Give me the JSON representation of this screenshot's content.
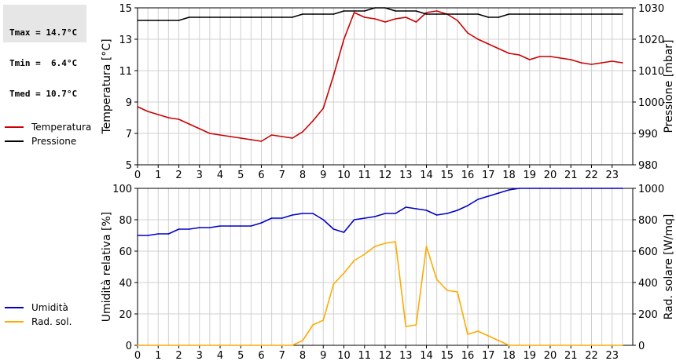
{
  "stats": {
    "tmax": "Tmax = 14.7°C",
    "tmin": "Tmin =  6.4°C",
    "tmed": "Tmed = 10.7°C"
  },
  "colors": {
    "temperature": "#cc0000",
    "pressure": "#000000",
    "humidity": "#0000cc",
    "radiation": "#ffaa00",
    "grid": "#d0d0d0"
  },
  "chart_data": [
    {
      "type": "line",
      "ylabel": "Temperatura [°C]",
      "ylabel_right": "Pressione [mbar]",
      "xlim": [
        0,
        24
      ],
      "xticks": [
        0,
        1,
        2,
        3,
        4,
        5,
        6,
        7,
        8,
        9,
        10,
        11,
        12,
        13,
        14,
        15,
        16,
        17,
        18,
        19,
        20,
        21,
        22,
        23
      ],
      "ylim": [
        5,
        15
      ],
      "yticks": [
        5,
        7,
        9,
        11,
        13,
        15
      ],
      "ylim_right": [
        980,
        1030
      ],
      "yticks_right": [
        980,
        990,
        1000,
        1010,
        1020,
        1030
      ],
      "grid": true,
      "legend_position": "left",
      "series": [
        {
          "name": "Temperatura",
          "axis": "left",
          "color": "#cc0000",
          "x": [
            0,
            0.5,
            1,
            1.5,
            2,
            2.5,
            3,
            3.5,
            4,
            4.5,
            5,
            5.5,
            6,
            6.5,
            7,
            7.5,
            8,
            8.5,
            9,
            9.5,
            10,
            10.5,
            11,
            11.5,
            12,
            12.5,
            13,
            13.5,
            14,
            14.5,
            15,
            15.5,
            16,
            16.5,
            17,
            17.5,
            18,
            18.5,
            19,
            19.5,
            20,
            20.5,
            21,
            21.5,
            22,
            22.5,
            23,
            23.5
          ],
          "y": [
            8.7,
            8.4,
            8.2,
            8.0,
            7.9,
            7.6,
            7.3,
            7.0,
            6.9,
            6.8,
            6.7,
            6.6,
            6.5,
            6.9,
            6.8,
            6.7,
            7.1,
            7.8,
            8.6,
            10.7,
            13.0,
            14.7,
            14.4,
            14.3,
            14.1,
            14.3,
            14.4,
            14.1,
            14.7,
            14.8,
            14.6,
            14.2,
            13.4,
            13.0,
            12.7,
            12.4,
            12.1,
            12.0,
            11.7,
            11.9,
            11.9,
            11.8,
            11.7,
            11.5,
            11.4,
            11.5,
            11.6,
            11.5
          ]
        },
        {
          "name": "Pressione",
          "axis": "right",
          "color": "#000000",
          "x": [
            0,
            0.5,
            1,
            1.5,
            2,
            2.5,
            3,
            3.5,
            4,
            4.5,
            5,
            5.5,
            6,
            6.5,
            7,
            7.5,
            8,
            8.5,
            9,
            9.5,
            10,
            10.5,
            11,
            11.5,
            12,
            12.5,
            13,
            13.5,
            14,
            14.5,
            15,
            15.5,
            16,
            16.5,
            17,
            17.5,
            18,
            18.5,
            19,
            19.5,
            20,
            20.5,
            21,
            21.5,
            22,
            22.5,
            23,
            23.5
          ],
          "y": [
            1026,
            1026,
            1026,
            1026,
            1026,
            1027,
            1027,
            1027,
            1027,
            1027,
            1027,
            1027,
            1027,
            1027,
            1027,
            1027,
            1028,
            1028,
            1028,
            1028,
            1029,
            1029,
            1029,
            1030,
            1030,
            1029,
            1029,
            1029,
            1028,
            1028,
            1028,
            1028,
            1028,
            1028,
            1027,
            1027,
            1028,
            1028,
            1028,
            1028,
            1028,
            1028,
            1028,
            1028,
            1028,
            1028,
            1028,
            1028
          ]
        }
      ]
    },
    {
      "type": "line",
      "ylabel": "Umidità relativa [%]",
      "ylabel_right": "Rad. solare [W/mq]",
      "xlim": [
        0,
        24
      ],
      "xticks": [
        0,
        1,
        2,
        3,
        4,
        5,
        6,
        7,
        8,
        9,
        10,
        11,
        12,
        13,
        14,
        15,
        16,
        17,
        18,
        19,
        20,
        21,
        22,
        23
      ],
      "ylim": [
        0,
        100
      ],
      "yticks": [
        0,
        20,
        40,
        60,
        80,
        100
      ],
      "ylim_right": [
        0,
        1000
      ],
      "yticks_right": [
        0,
        200,
        400,
        600,
        800,
        1000
      ],
      "grid": true,
      "legend_position": "left",
      "series": [
        {
          "name": "Umidità",
          "axis": "left",
          "color": "#0000cc",
          "x": [
            0,
            0.5,
            1,
            1.5,
            2,
            2.5,
            3,
            3.5,
            4,
            4.5,
            5,
            5.5,
            6,
            6.5,
            7,
            7.5,
            8,
            8.5,
            9,
            9.5,
            10,
            10.5,
            11,
            11.5,
            12,
            12.5,
            13,
            13.5,
            14,
            14.5,
            15,
            15.5,
            16,
            16.5,
            17,
            17.5,
            18,
            18.5,
            19,
            19.5,
            20,
            20.5,
            21,
            21.5,
            22,
            22.5,
            23,
            23.5
          ],
          "y": [
            70,
            70,
            71,
            71,
            74,
            74,
            75,
            75,
            76,
            76,
            76,
            76,
            78,
            81,
            81,
            83,
            84,
            84,
            80,
            74,
            72,
            80,
            81,
            82,
            84,
            84,
            88,
            87,
            86,
            83,
            84,
            86,
            89,
            93,
            95,
            97,
            99,
            100,
            100,
            100,
            100,
            100,
            100,
            100,
            100,
            100,
            100,
            100
          ]
        },
        {
          "name": "Rad. sol.",
          "axis": "right",
          "color": "#ffaa00",
          "x": [
            0,
            0.5,
            1,
            1.5,
            2,
            2.5,
            3,
            3.5,
            4,
            4.5,
            5,
            5.5,
            6,
            6.5,
            7,
            7.5,
            8,
            8.5,
            9,
            9.5,
            10,
            10.5,
            11,
            11.5,
            12,
            12.5,
            13,
            13.5,
            14,
            14.5,
            15,
            15.5,
            16,
            16.5,
            17,
            17.5,
            18,
            18.5,
            19,
            19.5,
            20,
            20.5,
            21,
            21.5,
            22,
            22.5,
            23,
            23.5
          ],
          "y": [
            0,
            0,
            0,
            0,
            0,
            0,
            0,
            0,
            0,
            0,
            0,
            0,
            0,
            0,
            0,
            0,
            30,
            130,
            160,
            390,
            460,
            540,
            580,
            630,
            650,
            660,
            120,
            130,
            630,
            420,
            350,
            340,
            70,
            90,
            60,
            30,
            0,
            0,
            0,
            0,
            0,
            0,
            0,
            0,
            0,
            0,
            0,
            0
          ]
        }
      ]
    }
  ]
}
